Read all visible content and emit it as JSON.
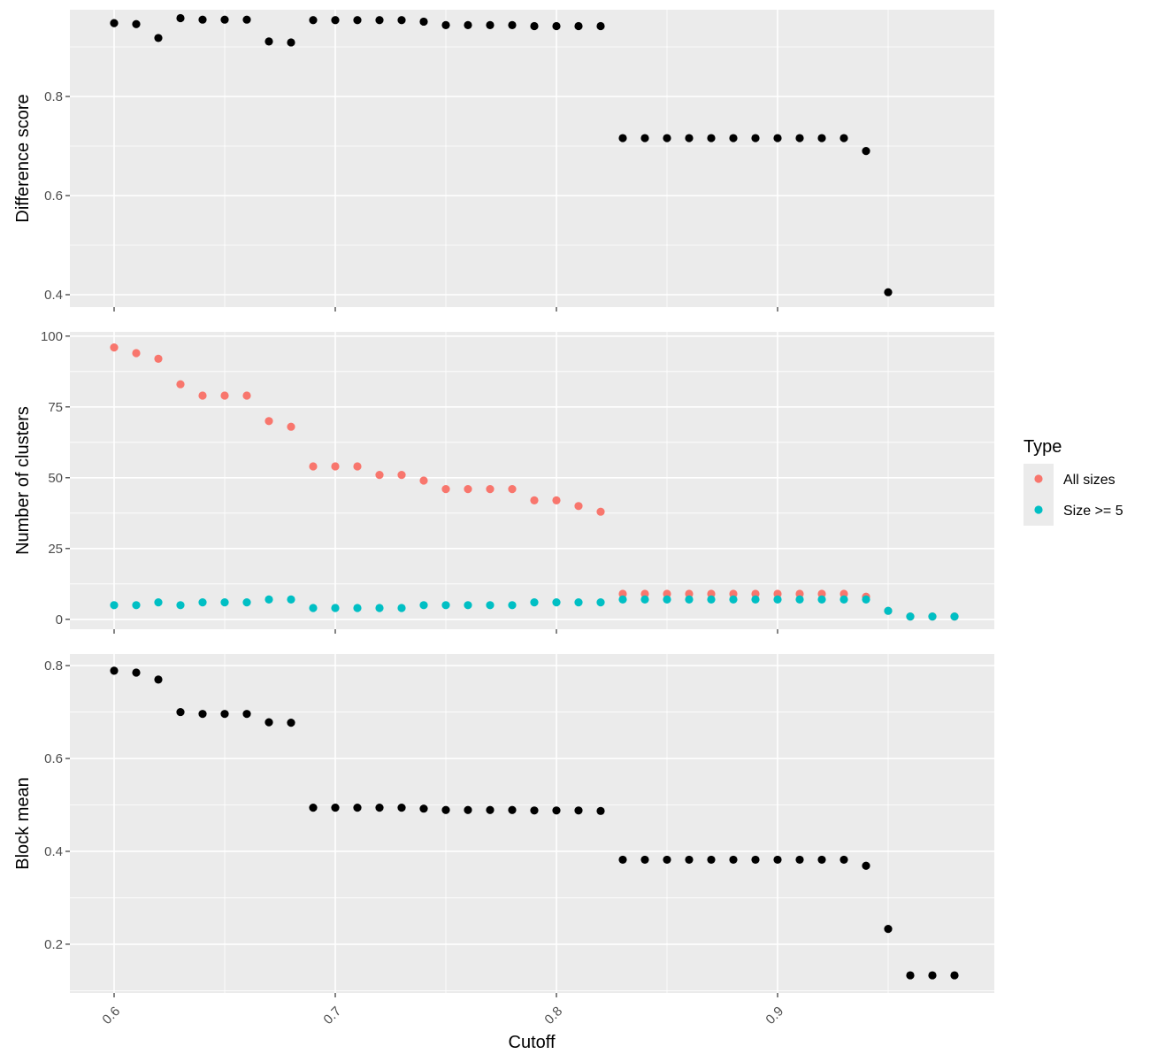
{
  "chart_data": {
    "type": "scatter",
    "x_label": "Cutoff",
    "x_range": [
      0.58,
      0.998
    ],
    "x_ticks": [
      0.6,
      0.7,
      0.8,
      0.9
    ],
    "x_tick_labels": [
      "0.6",
      "0.7",
      "0.8",
      "0.9"
    ],
    "grid": true,
    "legend": {
      "title": "Type",
      "position": "right",
      "entries": [
        {
          "label": "All sizes",
          "color": "#F8766D"
        },
        {
          "label": "Size >= 5",
          "color": "#00BFC4"
        }
      ]
    },
    "panels": [
      {
        "ylabel": "Difference score",
        "ylim": [
          0.375,
          0.975
        ],
        "y_ticks": [
          0.4,
          0.6,
          0.8
        ],
        "y_tick_labels": [
          "0.4",
          "0.6",
          "0.8"
        ],
        "series": [
          {
            "color": "#000000",
            "x": [
              0.6,
              0.61,
              0.62,
              0.63,
              0.64,
              0.65,
              0.66,
              0.67,
              0.68,
              0.69,
              0.7,
              0.71,
              0.72,
              0.73,
              0.74,
              0.75,
              0.76,
              0.77,
              0.78,
              0.79,
              0.8,
              0.81,
              0.82,
              0.83,
              0.84,
              0.85,
              0.86,
              0.87,
              0.88,
              0.89,
              0.9,
              0.91,
              0.92,
              0.93,
              0.94,
              0.95
            ],
            "y": [
              0.948,
              0.946,
              0.918,
              0.958,
              0.955,
              0.955,
              0.955,
              0.911,
              0.909,
              0.954,
              0.954,
              0.954,
              0.954,
              0.954,
              0.951,
              0.944,
              0.944,
              0.944,
              0.944,
              0.942,
              0.942,
              0.942,
              0.942,
              0.716,
              0.716,
              0.716,
              0.716,
              0.716,
              0.716,
              0.716,
              0.716,
              0.716,
              0.716,
              0.716,
              0.69,
              0.405
            ]
          }
        ]
      },
      {
        "ylabel": "Number of clusters",
        "ylim": [
          -3.5,
          101.5
        ],
        "y_ticks": [
          0,
          25,
          50,
          75,
          100
        ],
        "y_tick_labels": [
          "0",
          "25",
          "50",
          "75",
          "100"
        ],
        "series": [
          {
            "name": "All sizes",
            "color": "#F8766D",
            "x": [
              0.6,
              0.61,
              0.62,
              0.63,
              0.64,
              0.65,
              0.66,
              0.67,
              0.68,
              0.69,
              0.7,
              0.71,
              0.72,
              0.73,
              0.74,
              0.75,
              0.76,
              0.77,
              0.78,
              0.79,
              0.8,
              0.81,
              0.82,
              0.83,
              0.84,
              0.85,
              0.86,
              0.87,
              0.88,
              0.89,
              0.9,
              0.91,
              0.92,
              0.93,
              0.94,
              0.95,
              0.96,
              0.97,
              0.98
            ],
            "y": [
              96,
              94,
              92,
              83,
              79,
              79,
              79,
              70,
              68,
              54,
              54,
              54,
              51,
              51,
              49,
              46,
              46,
              46,
              46,
              42,
              42,
              40,
              38,
              9,
              9,
              9,
              9,
              9,
              9,
              9,
              9,
              9,
              9,
              9,
              8,
              3,
              1,
              1,
              1
            ]
          },
          {
            "name": "Size >= 5",
            "color": "#00BFC4",
            "x": [
              0.6,
              0.61,
              0.62,
              0.63,
              0.64,
              0.65,
              0.66,
              0.67,
              0.68,
              0.69,
              0.7,
              0.71,
              0.72,
              0.73,
              0.74,
              0.75,
              0.76,
              0.77,
              0.78,
              0.79,
              0.8,
              0.81,
              0.82,
              0.83,
              0.84,
              0.85,
              0.86,
              0.87,
              0.88,
              0.89,
              0.9,
              0.91,
              0.92,
              0.93,
              0.94,
              0.95,
              0.96,
              0.97,
              0.98
            ],
            "y": [
              5,
              5,
              6,
              5,
              6,
              6,
              6,
              7,
              7,
              4,
              4,
              4,
              4,
              4,
              5,
              5,
              5,
              5,
              5,
              6,
              6,
              6,
              6,
              7,
              7,
              7,
              7,
              7,
              7,
              7,
              7,
              7,
              7,
              7,
              7,
              3,
              1,
              1,
              1
            ]
          }
        ]
      },
      {
        "ylabel": "Block mean",
        "ylim": [
          0.095,
          0.825
        ],
        "y_ticks": [
          0.2,
          0.4,
          0.6,
          0.8
        ],
        "y_tick_labels": [
          "0.2",
          "0.4",
          "0.6",
          "0.8"
        ],
        "series": [
          {
            "color": "#000000",
            "x": [
              0.6,
              0.61,
              0.62,
              0.63,
              0.64,
              0.65,
              0.66,
              0.67,
              0.68,
              0.69,
              0.7,
              0.71,
              0.72,
              0.73,
              0.74,
              0.75,
              0.76,
              0.77,
              0.78,
              0.79,
              0.8,
              0.81,
              0.82,
              0.83,
              0.84,
              0.85,
              0.86,
              0.87,
              0.88,
              0.89,
              0.9,
              0.91,
              0.92,
              0.93,
              0.94,
              0.95,
              0.96,
              0.97,
              0.98
            ],
            "y": [
              0.789,
              0.785,
              0.77,
              0.7,
              0.696,
              0.696,
              0.696,
              0.678,
              0.677,
              0.494,
              0.494,
              0.494,
              0.494,
              0.494,
              0.492,
              0.489,
              0.489,
              0.489,
              0.489,
              0.488,
              0.488,
              0.488,
              0.487,
              0.382,
              0.382,
              0.382,
              0.382,
              0.382,
              0.382,
              0.382,
              0.382,
              0.382,
              0.382,
              0.382,
              0.369,
              0.233,
              0.133,
              0.133,
              0.133
            ]
          }
        ]
      }
    ]
  }
}
